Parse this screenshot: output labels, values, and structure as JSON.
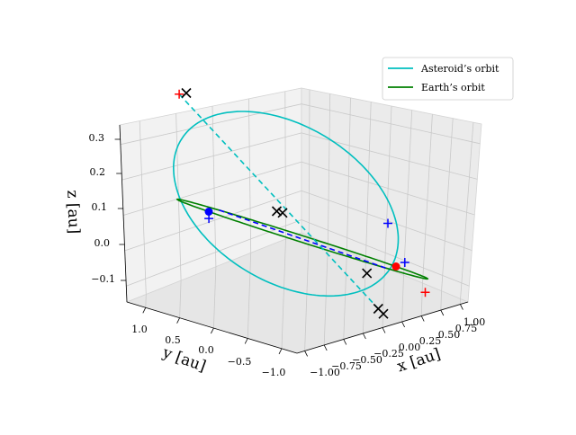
{
  "chart_data": {
    "type": "line",
    "projection": "3d",
    "xlabel": "x [au]",
    "ylabel": "y [au]",
    "zlabel": "z [au]",
    "xlim": [
      -1.1,
      1.1
    ],
    "ylim": [
      -1.1,
      1.4
    ],
    "zlim": [
      -0.16,
      0.34
    ],
    "x_ticks": [
      "−1.00",
      "−0.75",
      "−0.50",
      "−0.25",
      "0.00",
      "0.25",
      "0.50",
      "0.75",
      "1.00"
    ],
    "y_ticks": [
      "−1.0",
      "−0.5",
      "0.0",
      "0.5",
      "1.0"
    ],
    "z_ticks": [
      "−0.1",
      "0.0",
      "0.1",
      "0.2",
      "0.3"
    ],
    "grid": true,
    "legend_position": "top-right",
    "legend": [
      {
        "label": "Asteroid’s orbit",
        "color": "#00bfbf"
      },
      {
        "label": "Earth’s orbit",
        "color": "#008000"
      }
    ],
    "series": [
      {
        "name": "Asteroid’s orbit",
        "color": "#00bfbf",
        "shape": "ellipse",
        "center": [
          0.03,
          0.2,
          0.09
        ],
        "axis_a": [
          0.0,
          -1.2,
          -0.01
        ],
        "axis_b": [
          0.02,
          0.0,
          0.25
        ]
      },
      {
        "name": "Earth’s orbit",
        "color": "#008000",
        "shape": "circle",
        "center": [
          0.0,
          0.0,
          0.0
        ],
        "radius": 1.0
      }
    ],
    "lines": [
      {
        "color": "#00bfbf",
        "style": "dashed",
        "from": [
          0.05,
          1.35,
          0.32
        ],
        "to": [
          -0.05,
          -0.85,
          -0.14
        ]
      },
      {
        "color": "#0000ff",
        "style": "dashed",
        "from": [
          -1.0,
          0.0,
          0.0
        ],
        "to": [
          1.0,
          0.0,
          0.0
        ]
      }
    ],
    "markers": [
      {
        "type": "dot",
        "color": "#ff0000",
        "point": [
          0.0,
          -1.0,
          0.0
        ]
      },
      {
        "type": "dot",
        "color": "#0000ff",
        "point": [
          0.0,
          1.0,
          0.0
        ]
      },
      {
        "type": "plus",
        "color": "#ff0000",
        "point": [
          0.05,
          1.35,
          0.32
        ]
      },
      {
        "type": "plus",
        "color": "#ff0000",
        "point": [
          0.8,
          -0.6,
          -0.04
        ]
      },
      {
        "type": "plus",
        "color": "#0000ff",
        "point": [
          0.02,
          -0.9,
          0.12
        ]
      },
      {
        "type": "plus",
        "color": "#0000ff",
        "point": [
          0.05,
          -1.05,
          0.02
        ]
      },
      {
        "type": "plus",
        "color": "#0000ff",
        "point": [
          0.0,
          1.0,
          -0.02
        ]
      },
      {
        "type": "cross",
        "color": "#000000",
        "point": [
          0.08,
          1.3,
          0.33
        ]
      },
      {
        "type": "cross",
        "color": "#000000",
        "point": [
          0.02,
          0.29,
          0.06
        ]
      },
      {
        "type": "cross",
        "color": "#000000",
        "point": [
          0.0,
          0.21,
          0.06
        ]
      },
      {
        "type": "cross",
        "color": "#000000",
        "point": [
          0.38,
          -0.35,
          -0.04
        ]
      },
      {
        "type": "cross",
        "color": "#000000",
        "point": [
          0.0,
          -0.86,
          -0.15
        ]
      },
      {
        "type": "cross",
        "color": "#000000",
        "point": [
          -0.05,
          -0.85,
          -0.14
        ]
      }
    ]
  }
}
